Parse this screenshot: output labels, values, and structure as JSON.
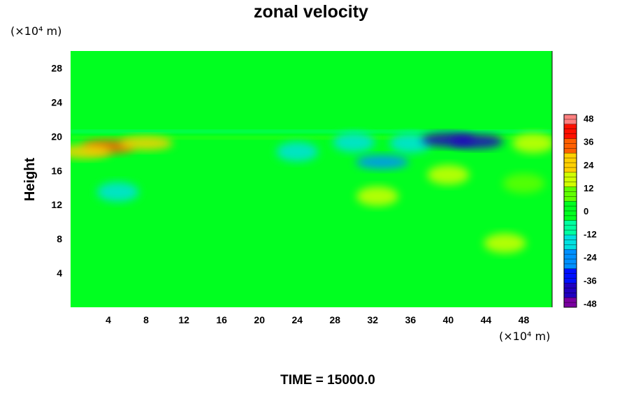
{
  "chart_data": {
    "type": "heatmap",
    "title": "zonal velocity",
    "ylabel": "Height",
    "xlabel": "",
    "y_unit_label": "(×10⁴ m)",
    "x_unit_label": "(×10⁴ m)",
    "x_ticks": [
      4,
      8,
      12,
      16,
      20,
      24,
      28,
      32,
      36,
      40,
      44,
      48
    ],
    "y_ticks": [
      4,
      8,
      12,
      16,
      20,
      24,
      28
    ],
    "xlim": [
      0,
      51
    ],
    "ylim": [
      0,
      30
    ],
    "colorbar": {
      "ticks": [
        48,
        36,
        24,
        12,
        0,
        -12,
        -24,
        -36,
        -48
      ],
      "range": [
        -50,
        50
      ],
      "colors": [
        "#7a00a0",
        "#2000c0",
        "#0010ff",
        "#0090ff",
        "#00e0e0",
        "#00ffa0",
        "#00ff20",
        "#60ff00",
        "#d0ff00",
        "#ffd000",
        "#ff6000",
        "#ff1000",
        "#ff8080"
      ]
    },
    "features": [
      {
        "x": 4,
        "y": 18.8,
        "value": 30
      },
      {
        "x": 8,
        "y": 19.2,
        "value": 24
      },
      {
        "x": 1.5,
        "y": 18.2,
        "value": 28
      },
      {
        "x": 30,
        "y": 19.3,
        "value": -20
      },
      {
        "x": 36,
        "y": 19.2,
        "value": -20
      },
      {
        "x": 40,
        "y": 19.6,
        "value": -38
      },
      {
        "x": 43,
        "y": 19.4,
        "value": -42
      },
      {
        "x": 33,
        "y": 17,
        "value": -24
      },
      {
        "x": 32.5,
        "y": 13,
        "value": 18
      },
      {
        "x": 40,
        "y": 15.5,
        "value": 14
      },
      {
        "x": 48,
        "y": 14.5,
        "value": 12
      },
      {
        "x": 5,
        "y": 13.5,
        "value": -18
      },
      {
        "x": 24,
        "y": 18.2,
        "value": -14
      },
      {
        "x": 49,
        "y": 19.2,
        "value": 16
      },
      {
        "x": 46,
        "y": 7.5,
        "value": 14
      }
    ],
    "grid": false
  },
  "footer": {
    "time_label": "TIME = 15000.0"
  }
}
